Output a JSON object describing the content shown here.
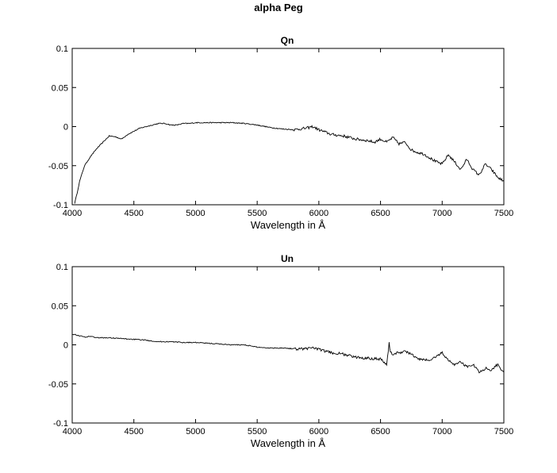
{
  "figure_title": "alpha Peg",
  "chart_data": [
    {
      "type": "line",
      "title": "Qn",
      "xlabel": "Wavelength in Å",
      "ylabel": "",
      "xlim": [
        4000,
        7500
      ],
      "ylim": [
        -0.1,
        0.1
      ],
      "xticks": [
        "4000",
        "4500",
        "5000",
        "5500",
        "6000",
        "6500",
        "7000",
        "7500"
      ],
      "yticks": [
        "0.1",
        "0.05",
        "0",
        "-0.05",
        "-0.1"
      ],
      "grid": false,
      "color": "#000000",
      "series": [
        {
          "x": [
            4020,
            4040,
            4060,
            4080,
            4100,
            4150,
            4200,
            4250,
            4300,
            4350,
            4400,
            4450,
            4500,
            4550,
            4600,
            4650,
            4700,
            4750,
            4800,
            4850,
            4900,
            4950,
            5000,
            5100,
            5200,
            5300,
            5400,
            5500,
            5600,
            5700,
            5800,
            5900,
            5950,
            6000,
            6100,
            6200,
            6300,
            6400,
            6450,
            6500,
            6550,
            6600,
            6650,
            6700,
            6750,
            6800,
            6850,
            6900,
            6950,
            7000,
            7050,
            7100,
            7150,
            7200,
            7250,
            7300,
            7350,
            7400,
            7450,
            7500
          ],
          "y": [
            -0.098,
            -0.085,
            -0.07,
            -0.06,
            -0.05,
            -0.038,
            -0.028,
            -0.02,
            -0.012,
            -0.013,
            -0.016,
            -0.01,
            -0.006,
            -0.002,
            0.0,
            0.002,
            0.004,
            0.004,
            0.002,
            0.002,
            0.004,
            0.004,
            0.005,
            0.005,
            0.005,
            0.005,
            0.004,
            0.002,
            -0.001,
            -0.003,
            -0.004,
            -0.002,
            0.0,
            -0.004,
            -0.01,
            -0.012,
            -0.016,
            -0.018,
            -0.02,
            -0.016,
            -0.02,
            -0.014,
            -0.022,
            -0.02,
            -0.03,
            -0.033,
            -0.035,
            -0.04,
            -0.045,
            -0.048,
            -0.036,
            -0.045,
            -0.055,
            -0.042,
            -0.055,
            -0.062,
            -0.048,
            -0.055,
            -0.065,
            -0.07
          ]
        }
      ]
    },
    {
      "type": "line",
      "title": "Un",
      "xlabel": "Wavelength in Å",
      "ylabel": "",
      "xlim": [
        4000,
        7500
      ],
      "ylim": [
        -0.1,
        0.1
      ],
      "xticks": [
        "4000",
        "4500",
        "5000",
        "5500",
        "6000",
        "6500",
        "7000",
        "7500"
      ],
      "yticks": [
        "0.1",
        "0.05",
        "0",
        "-0.05",
        "-0.1"
      ],
      "grid": false,
      "color": "#000000",
      "series": [
        {
          "x": [
            4000,
            4050,
            4100,
            4150,
            4200,
            4300,
            4400,
            4500,
            4600,
            4700,
            4800,
            4900,
            5000,
            5100,
            5200,
            5300,
            5400,
            5500,
            5600,
            5700,
            5800,
            5900,
            5950,
            6000,
            6100,
            6200,
            6300,
            6400,
            6500,
            6550,
            6570,
            6580,
            6600,
            6650,
            6700,
            6750,
            6800,
            6900,
            7000,
            7050,
            7100,
            7150,
            7200,
            7250,
            7300,
            7350,
            7400,
            7450,
            7500
          ],
          "y": [
            0.014,
            0.012,
            0.01,
            0.011,
            0.009,
            0.009,
            0.008,
            0.007,
            0.006,
            0.004,
            0.004,
            0.003,
            0.003,
            0.002,
            0.001,
            0.0,
            0.0,
            -0.003,
            -0.004,
            -0.004,
            -0.005,
            -0.005,
            -0.003,
            -0.006,
            -0.01,
            -0.012,
            -0.016,
            -0.017,
            -0.018,
            -0.025,
            0.002,
            -0.01,
            -0.012,
            -0.01,
            -0.008,
            -0.012,
            -0.018,
            -0.02,
            -0.01,
            -0.02,
            -0.025,
            -0.022,
            -0.028,
            -0.025,
            -0.035,
            -0.03,
            -0.032,
            -0.025,
            -0.035
          ]
        }
      ]
    }
  ]
}
